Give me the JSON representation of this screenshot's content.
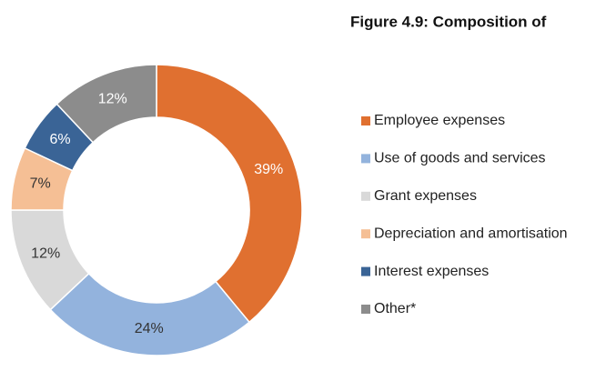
{
  "chart_data": {
    "type": "donut",
    "title": "Figure 4.9: Composition of",
    "categories": [
      "Employee expenses",
      "Use of goods and services",
      "Grant expenses",
      "Depreciation and amortisation",
      "Interest expenses",
      "Other*"
    ],
    "values": [
      39,
      24,
      12,
      7,
      6,
      12
    ],
    "value_labels": [
      "39%",
      "24%",
      "12%",
      "7%",
      "6%",
      "12%"
    ],
    "colors": [
      "#e07030",
      "#93b3dd",
      "#d9d9d9",
      "#f5bf95",
      "#3a6496",
      "#8c8c8c"
    ],
    "legend": "right"
  }
}
